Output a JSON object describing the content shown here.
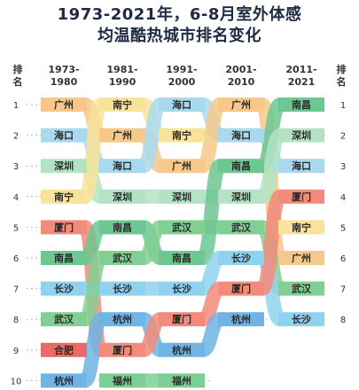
{
  "title_line1": "1973-2021年，6-8月室外体感",
  "title_line2": "均温酷热城市排名变化",
  "chart_data": {
    "type": "table",
    "rank_header": "排名",
    "periods": [
      "1973-1980",
      "1981-1990",
      "1991-2000",
      "2001-2010",
      "2011-2021"
    ],
    "ranks": [
      "1",
      "2",
      "3",
      "4",
      "5",
      "6",
      "7",
      "8",
      "9",
      "10"
    ],
    "right_ranks": [
      "1",
      "2",
      "3",
      "4",
      "5",
      "6",
      "7",
      "8"
    ],
    "rankings": [
      [
        "广州",
        "海口",
        "深圳",
        "南宁",
        "厦门",
        "南昌",
        "长沙",
        "武汉",
        "合肥",
        "杭州"
      ],
      [
        "南宁",
        "广州",
        "海口",
        "深圳",
        "南昌",
        "武汉",
        "长沙",
        "杭州",
        "厦门",
        "福州"
      ],
      [
        "海口",
        "南宁",
        "广州",
        "深圳",
        "武汉",
        "南昌",
        "长沙",
        "厦门",
        "杭州",
        "福州"
      ],
      [
        "广州",
        "海口",
        "南昌",
        "深圳",
        "武汉",
        "长沙",
        "厦门",
        "杭州"
      ],
      [
        "南昌",
        "深圳",
        "海口",
        "厦门",
        "南宁",
        "广州",
        "武汉",
        "长沙"
      ]
    ],
    "city_colors": {
      "广州": "#f6c98b",
      "海口": "#a9d9ee",
      "深圳": "#b3e3c4",
      "南宁": "#f9e39a",
      "厦门": "#f28b79",
      "南昌": "#6dc790",
      "长沙": "#8fd2f0",
      "武汉": "#82cf93",
      "合肥": "#ea6a6a",
      "杭州": "#6fb4e4",
      "福州": "#7bcf94"
    }
  }
}
